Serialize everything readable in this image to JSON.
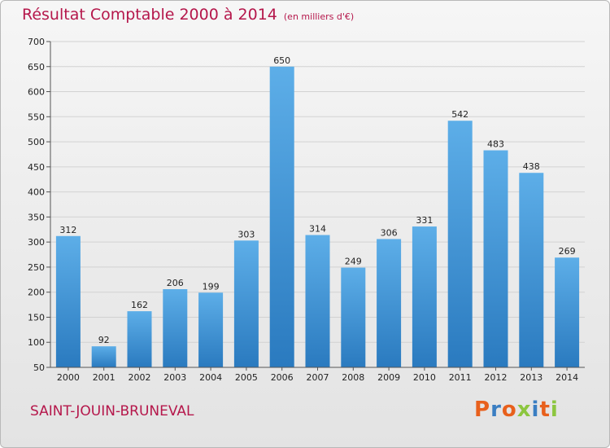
{
  "header": {
    "title": "Résultat Comptable 2000 à 2014",
    "subtitle": "(en milliers d'€)"
  },
  "footer": {
    "commune": "SAINT-JOUIN-BRUNEVAL",
    "logo": "Proxiti",
    "logo_colors": [
      "#e8601c",
      "#3a7ec2",
      "#e8601c",
      "#8cc63f",
      "#3a7ec2",
      "#e8601c",
      "#8cc63f"
    ]
  },
  "colors": {
    "accent": "#b5174b",
    "bar_top": "#5daee8",
    "bar_bottom": "#2a7abf"
  },
  "chart_data": {
    "type": "bar",
    "title": "Résultat Comptable 2000 à 2014",
    "xlabel": "",
    "ylabel": "",
    "categories": [
      "2000",
      "2001",
      "2002",
      "2003",
      "2004",
      "2005",
      "2006",
      "2007",
      "2008",
      "2009",
      "2010",
      "2011",
      "2012",
      "2013",
      "2014"
    ],
    "values": [
      312,
      92,
      162,
      206,
      199,
      303,
      650,
      314,
      249,
      306,
      331,
      542,
      483,
      438,
      269
    ],
    "ylim": [
      50,
      700
    ],
    "yticks": [
      50,
      100,
      150,
      200,
      250,
      300,
      350,
      400,
      450,
      500,
      550,
      600,
      650,
      700
    ],
    "grid": true,
    "data_labels": true
  }
}
